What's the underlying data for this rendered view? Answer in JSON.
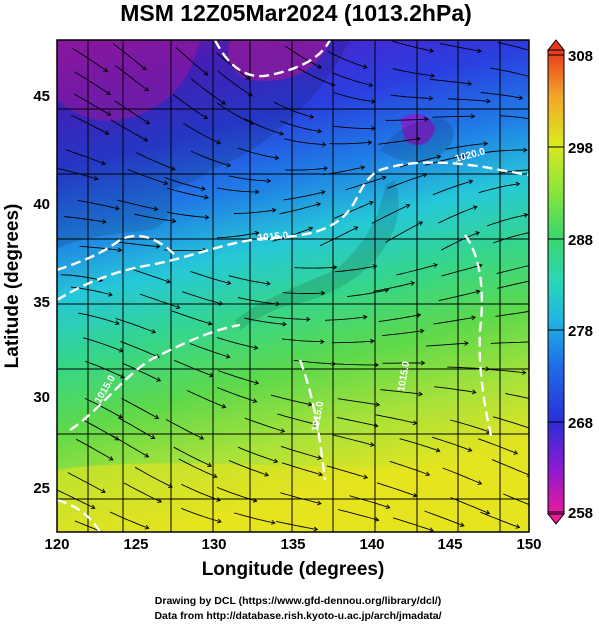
{
  "title": "MSM 12Z05Mar2024 (1013.2hPa)",
  "x_axis": {
    "label": "Longitude (degrees)",
    "ticks": [
      "120",
      "125",
      "130",
      "135",
      "140",
      "145",
      "150"
    ],
    "range": [
      120,
      150
    ]
  },
  "y_axis": {
    "label": "Latitude  (degrees)",
    "ticks": [
      "25",
      "30",
      "35",
      "40",
      "45"
    ],
    "range": [
      22.4,
      47.6
    ]
  },
  "colorbar": {
    "ticks": [
      "258",
      "268",
      "278",
      "288",
      "298",
      "308"
    ],
    "range": [
      258,
      308
    ],
    "colors": [
      "#e81a9a",
      "#6a1bd2",
      "#1f2fd8",
      "#1f8ee8",
      "#26d6d8",
      "#3fd67a",
      "#8ee63a",
      "#e6e81e",
      "#f2a62a",
      "#e8481e"
    ]
  },
  "contour_labels": [
    "1020.0",
    "1015.0",
    "1015.0",
    "1015.0",
    "1015.0"
  ],
  "credits": [
    "Drawing by DCL (https://www.gfd-dennou.org/library/dcl/)",
    "Data from http://database.rish.kyoto-u.ac.jp/arch/jmadata/"
  ]
}
